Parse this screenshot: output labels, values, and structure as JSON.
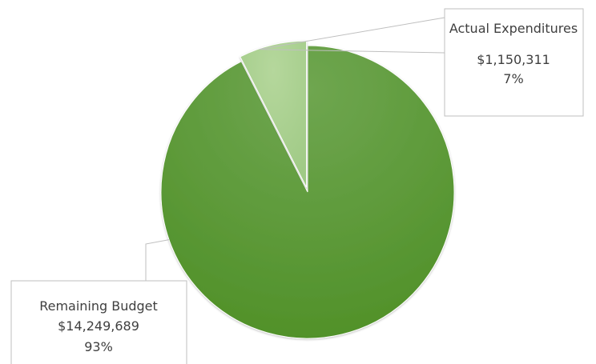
{
  "chart_data": {
    "type": "pie",
    "slices": [
      {
        "name": "Remaining Budget",
        "value_label": "$14,249,689",
        "value": 14249689,
        "percent": 93,
        "percent_label": "93%",
        "color": "#5a9a35"
      },
      {
        "name": "Actual Expenditures",
        "value_label": "$1,150,311",
        "value": 1150311,
        "percent": 7,
        "percent_label": "7%",
        "color": "#a9d08e"
      }
    ],
    "callout_colors": {
      "border": "#bfbfbf",
      "fill": "#ffffff",
      "text": "#3f3f3f"
    }
  }
}
